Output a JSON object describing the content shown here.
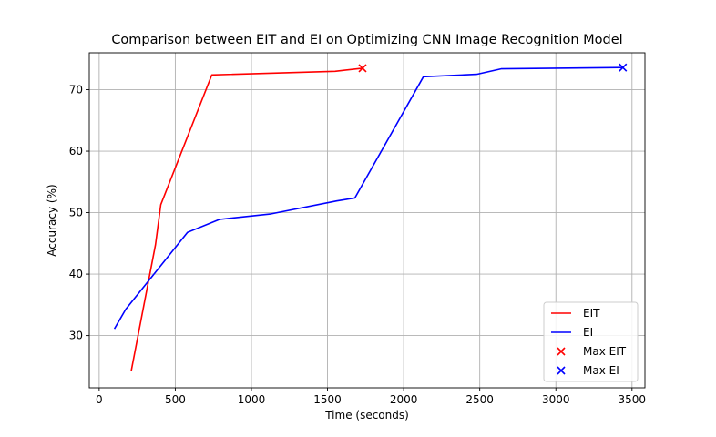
{
  "chart_data": {
    "type": "line",
    "title": "Comparison between EIT and EI on Optimizing CNN Image Recognition Model",
    "xlabel": "Time (seconds)",
    "ylabel": "Accuracy (%)",
    "xlim": [
      -65,
      3585
    ],
    "ylim": [
      21.5,
      76
    ],
    "xticks": [
      0,
      500,
      1000,
      1500,
      2000,
      2500,
      3000,
      3500
    ],
    "xtick_labels": [
      "0",
      "500",
      "1000",
      "1500",
      "2000",
      "2500",
      "3000",
      "3500"
    ],
    "yticks": [
      30,
      40,
      50,
      60,
      70
    ],
    "ytick_labels": [
      "30",
      "40",
      "50",
      "60",
      "70"
    ],
    "grid": true,
    "legend_position": "lower-right",
    "series": [
      {
        "name": "EIT",
        "color": "#ff0000",
        "points": [
          [
            210,
            24.2
          ],
          [
            370,
            44.8
          ],
          [
            405,
            51.3
          ],
          [
            740,
            72.4
          ],
          [
            1550,
            73.0
          ],
          [
            1730,
            73.5
          ]
        ]
      },
      {
        "name": "EI",
        "color": "#0000ff",
        "points": [
          [
            100,
            31.1
          ],
          [
            175,
            34.3
          ],
          [
            580,
            46.8
          ],
          [
            790,
            48.9
          ],
          [
            1130,
            49.8
          ],
          [
            1560,
            51.9
          ],
          [
            1680,
            52.4
          ],
          [
            2130,
            72.1
          ],
          [
            2480,
            72.5
          ],
          [
            2640,
            73.4
          ],
          [
            3440,
            73.6
          ]
        ]
      }
    ],
    "markers": [
      {
        "name": "Max EIT",
        "x": 1730,
        "y": 73.5,
        "color": "#ff0000",
        "symbol": "x"
      },
      {
        "name": "Max EI",
        "x": 3440,
        "y": 73.6,
        "color": "#0000ff",
        "symbol": "x"
      }
    ]
  }
}
